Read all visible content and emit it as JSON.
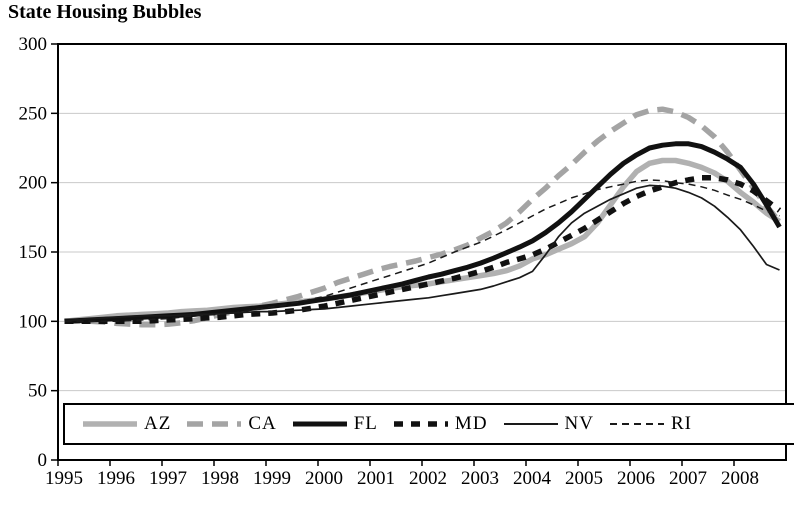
{
  "title": "State Housing Bubbles",
  "chart_data": {
    "type": "line",
    "title": "State Housing Bubbles",
    "xlabel": "",
    "ylabel": "",
    "x_tick_years": [
      1995,
      1996,
      1997,
      1998,
      1999,
      2000,
      2001,
      2002,
      2003,
      2004,
      2005,
      2006,
      2007,
      2008
    ],
    "y_ticks": [
      0,
      50,
      100,
      150,
      200,
      250,
      300
    ],
    "ylim": [
      0,
      300
    ],
    "grid": "horizontal",
    "grid_color": "#c9c9c9",
    "axis_color": "#000000",
    "legend_position": "bottom",
    "x_start": 1995.0,
    "x_step": 0.25,
    "series": [
      {
        "name": "AZ",
        "color": "#b1b1b1",
        "width": 5.5,
        "dash": "",
        "values": [
          100,
          101,
          102,
          103,
          104,
          104.5,
          105,
          105.5,
          106,
          107,
          107.5,
          108,
          109,
          110,
          110.5,
          111,
          112,
          113,
          114,
          115,
          116,
          117.5,
          119,
          120.5,
          122,
          123.5,
          125,
          126,
          127,
          128.5,
          130,
          131.5,
          133,
          134.5,
          136.5,
          140,
          145,
          148,
          152,
          156,
          161,
          171,
          184,
          197,
          208,
          214,
          216,
          216,
          214,
          211,
          207,
          201,
          193,
          186,
          178,
          172
        ]
      },
      {
        "name": "CA",
        "color": "#a4a4a4",
        "width": 5.5,
        "dash": "16,9",
        "values": [
          100,
          100,
          100,
          99.5,
          98.5,
          98,
          97.5,
          97.5,
          98,
          99,
          100.5,
          102.5,
          105,
          107,
          109,
          111,
          113,
          115.5,
          118,
          121,
          124,
          128,
          131,
          134,
          137,
          139.5,
          141.5,
          143.5,
          146,
          148.5,
          151.5,
          155,
          160,
          165,
          171,
          179,
          188,
          196,
          205,
          213,
          222,
          230,
          237,
          243,
          249,
          252,
          253,
          251,
          247,
          241,
          233,
          222,
          209,
          196,
          183,
          172
        ]
      },
      {
        "name": "FL",
        "color": "#111111",
        "width": 5,
        "dash": "",
        "values": [
          100,
          100.5,
          101,
          101.5,
          102,
          102.5,
          103,
          103.5,
          104,
          104.5,
          105,
          106,
          107,
          108,
          109,
          110,
          111,
          112,
          113,
          114.5,
          116,
          117.5,
          119,
          121,
          123,
          125,
          127,
          129.5,
          132,
          134,
          136.5,
          139,
          142,
          145.5,
          149.5,
          153.5,
          158,
          164,
          171,
          179,
          188,
          197,
          206,
          214,
          220,
          225,
          227,
          228,
          228,
          226,
          222,
          217,
          211,
          199,
          184,
          168
        ]
      },
      {
        "name": "MD",
        "color": "#111111",
        "width": 5.5,
        "dash": "9,8",
        "values": [
          100,
          100,
          100,
          100,
          100,
          100,
          100,
          100.5,
          101,
          101.5,
          102,
          102.5,
          103,
          104,
          105,
          105.5,
          106,
          107,
          108,
          109.5,
          111,
          113,
          115,
          117,
          119,
          121,
          123,
          125,
          127,
          129,
          131,
          133.5,
          136,
          139,
          142.5,
          145,
          148,
          152,
          157,
          162,
          167,
          173,
          179,
          185,
          190,
          194,
          197,
          200,
          202,
          203.5,
          203.5,
          202,
          199,
          194,
          187,
          180
        ]
      },
      {
        "name": "NV",
        "color": "#1a1a1a",
        "width": 1.7,
        "dash": "",
        "values": [
          100,
          101,
          102,
          102.5,
          103,
          103.5,
          104,
          104,
          104,
          104.5,
          105,
          105,
          105.5,
          106,
          106.5,
          107,
          107,
          107.5,
          108,
          108.5,
          109,
          110,
          111,
          112,
          113,
          114,
          115,
          116,
          117,
          118.5,
          120,
          121.5,
          123,
          125.5,
          128.5,
          131.5,
          136,
          148,
          161,
          171,
          178,
          183,
          188,
          192,
          196,
          198,
          197.5,
          196,
          193,
          189,
          183,
          175,
          166,
          154,
          141,
          137
        ]
      },
      {
        "name": "RI",
        "color": "#1a1a1a",
        "width": 1.5,
        "dash": "7,5",
        "values": [
          100,
          100,
          100,
          100,
          100,
          100.5,
          101,
          101.5,
          102,
          103,
          104,
          104.5,
          105,
          106,
          107.5,
          109,
          110.5,
          112,
          114,
          116,
          118,
          121,
          124,
          127,
          130,
          133,
          136,
          139,
          142,
          146,
          150,
          153.5,
          157,
          161.5,
          166,
          171,
          176,
          181,
          185,
          189,
          192,
          195,
          197,
          199,
          201,
          202,
          201.5,
          200,
          199,
          197,
          194.5,
          191,
          188,
          184,
          179.5,
          176
        ]
      }
    ]
  }
}
